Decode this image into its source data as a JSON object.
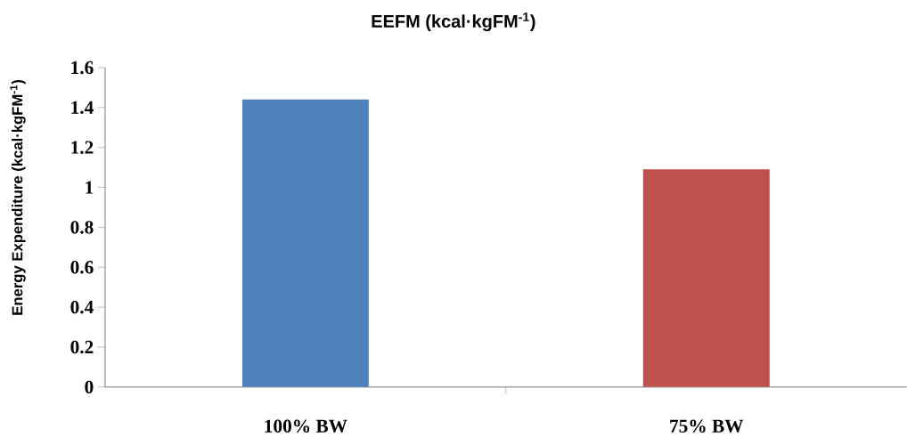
{
  "chart_data": {
    "type": "bar",
    "title": "EEFM (kcal·kgFM$^{-1}$)",
    "ylabel": "Energy Expenditure (kcal·kgFM$^{-1}$)",
    "categories": [
      "100% BW",
      "75% BW"
    ],
    "values": [
      1.44,
      1.09
    ],
    "colors": [
      "#4f81bd",
      "#c0504d"
    ],
    "ylim": [
      0,
      1.6
    ],
    "yticks": [
      0,
      0.2,
      0.4,
      0.6,
      0.8,
      1,
      1.2,
      1.4,
      1.6
    ]
  }
}
